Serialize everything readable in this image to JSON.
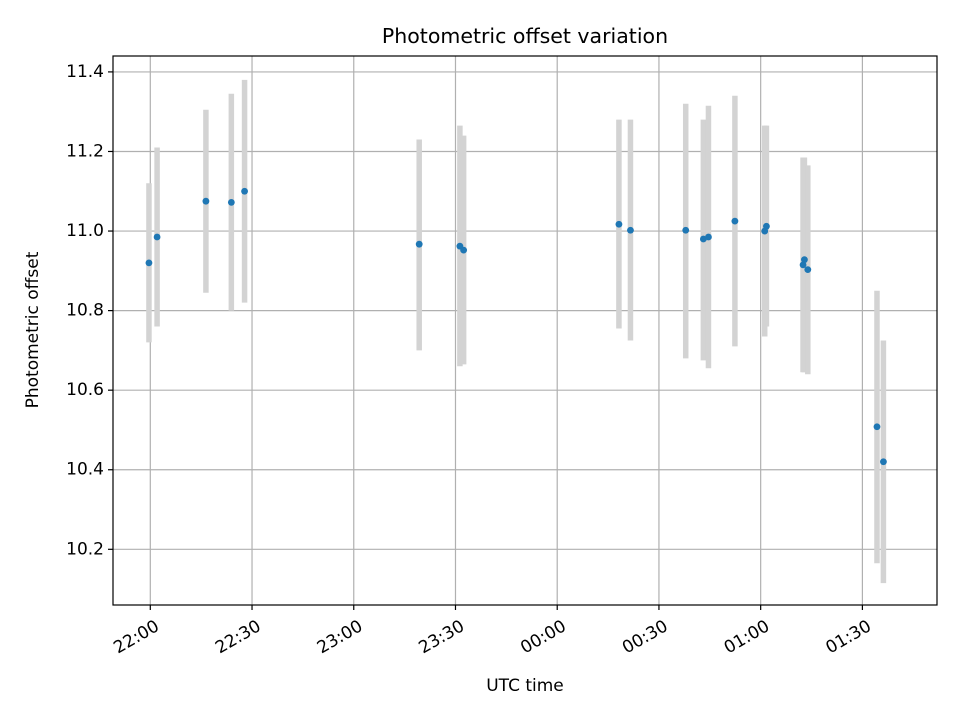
{
  "chart_data": {
    "type": "scatter",
    "title": "Photometric offset variation",
    "xlabel": "UTC time",
    "ylabel": "Photometric offset",
    "grid": true,
    "marker_color": "#1f77b4",
    "errorbar_color": "#d3d3d3",
    "xlim": [
      "21:49",
      "01:52"
    ],
    "ylim": [
      10.06,
      11.44
    ],
    "x_ticks": [
      "22:00",
      "22:30",
      "23:00",
      "23:30",
      "00:00",
      "00:30",
      "01:00",
      "01:30"
    ],
    "y_ticks": [
      "10.2",
      "10.4",
      "10.6",
      "10.8",
      "11.0",
      "11.2",
      "11.4"
    ],
    "points": [
      {
        "x": "21:59.6",
        "y": 10.92,
        "ylow": 10.72,
        "yhigh": 11.12
      },
      {
        "x": "22:02.0",
        "y": 10.985,
        "ylow": 10.76,
        "yhigh": 11.21
      },
      {
        "x": "22:16.4",
        "y": 11.075,
        "ylow": 10.845,
        "yhigh": 11.305
      },
      {
        "x": "22:23.9",
        "y": 11.072,
        "ylow": 10.8,
        "yhigh": 11.345
      },
      {
        "x": "22:27.8",
        "y": 11.1,
        "ylow": 10.82,
        "yhigh": 11.38
      },
      {
        "x": "23:19.3",
        "y": 10.967,
        "ylow": 10.7,
        "yhigh": 11.23
      },
      {
        "x": "23:31.3",
        "y": 10.962,
        "ylow": 10.66,
        "yhigh": 11.265
      },
      {
        "x": "23:32.4",
        "y": 10.952,
        "ylow": 10.665,
        "yhigh": 11.24
      },
      {
        "x": "00:18.2",
        "y": 11.017,
        "ylow": 10.755,
        "yhigh": 11.28
      },
      {
        "x": "00:21.6",
        "y": 11.002,
        "ylow": 10.725,
        "yhigh": 11.28
      },
      {
        "x": "00:37.9",
        "y": 11.002,
        "ylow": 10.68,
        "yhigh": 11.32
      },
      {
        "x": "00:43.1",
        "y": 10.98,
        "ylow": 10.675,
        "yhigh": 11.28
      },
      {
        "x": "00:44.6",
        "y": 10.985,
        "ylow": 10.655,
        "yhigh": 11.315
      },
      {
        "x": "00:52.4",
        "y": 11.025,
        "ylow": 10.71,
        "yhigh": 11.34
      },
      {
        "x": "01:01.2",
        "y": 11.0,
        "ylow": 10.735,
        "yhigh": 11.265
      },
      {
        "x": "01:01.7",
        "y": 11.012,
        "ylow": 10.76,
        "yhigh": 11.265
      },
      {
        "x": "01:12.5",
        "y": 10.915,
        "ylow": 10.645,
        "yhigh": 11.185
      },
      {
        "x": "01:12.9",
        "y": 10.928,
        "ylow": 10.645,
        "yhigh": 11.185
      },
      {
        "x": "01:13.9",
        "y": 10.903,
        "ylow": 10.64,
        "yhigh": 11.165
      },
      {
        "x": "01:34.3",
        "y": 10.508,
        "ylow": 10.165,
        "yhigh": 10.85
      },
      {
        "x": "01:36.2",
        "y": 10.42,
        "ylow": 10.115,
        "yhigh": 10.725
      }
    ]
  }
}
